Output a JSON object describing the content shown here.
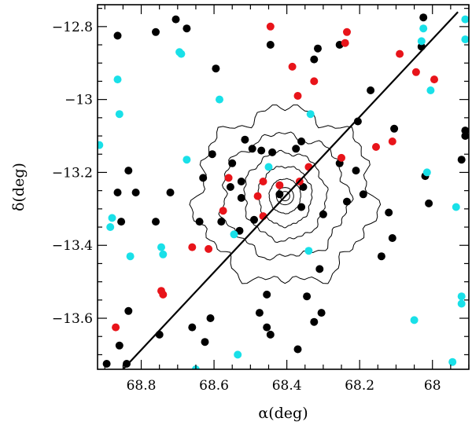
{
  "chart_data": {
    "type": "scatter",
    "xlabel": "α(deg)",
    "ylabel": "δ(deg)",
    "xlim": [
      68.92,
      67.9
    ],
    "ylim": [
      -13.74,
      -12.74
    ],
    "x_axis_reversed": true,
    "x_ticks": [
      68.8,
      68.6,
      68.4,
      68.2,
      68
    ],
    "x_tick_labels": [
      "68.8",
      "68.6",
      "68.4",
      "68.2",
      "68"
    ],
    "y_ticks": [
      -12.8,
      -13.0,
      -13.2,
      -13.4,
      -13.6
    ],
    "y_tick_labels": [
      "−12.8",
      "−13",
      "−13.2",
      "−13.4",
      "−13.6"
    ],
    "grid": false,
    "line": {
      "x": [
        68.85,
        67.93
      ],
      "y": [
        -13.74,
        -12.76
      ],
      "color": "#000000"
    },
    "center": {
      "x": 68.405,
      "y": -13.265
    },
    "colors": {
      "black": "#000000",
      "red": "#e8141a",
      "cyan": "#19e0e8"
    },
    "series": [
      {
        "color": "#000000",
        "points": [
          [
            68.865,
            -12.825
          ],
          [
            68.76,
            -12.815
          ],
          [
            68.705,
            -12.78
          ],
          [
            68.675,
            -12.805
          ],
          [
            68.595,
            -12.915
          ],
          [
            68.445,
            -12.85
          ],
          [
            68.325,
            -12.89
          ],
          [
            68.315,
            -12.86
          ],
          [
            68.255,
            -12.85
          ],
          [
            68.17,
            -12.975
          ],
          [
            68.105,
            -13.08
          ],
          [
            68.03,
            -12.855
          ],
          [
            68.025,
            -12.775
          ],
          [
            68.205,
            -13.06
          ],
          [
            67.91,
            -13.085
          ],
          [
            67.91,
            -13.1
          ],
          [
            67.92,
            -13.165
          ],
          [
            68.02,
            -13.21
          ],
          [
            68.01,
            -13.285
          ],
          [
            68.12,
            -13.31
          ],
          [
            68.11,
            -13.38
          ],
          [
            68.14,
            -13.43
          ],
          [
            68.31,
            -13.465
          ],
          [
            68.345,
            -13.54
          ],
          [
            68.305,
            -13.585
          ],
          [
            68.325,
            -13.61
          ],
          [
            68.37,
            -13.685
          ],
          [
            68.445,
            -13.645
          ],
          [
            68.455,
            -13.625
          ],
          [
            68.475,
            -13.585
          ],
          [
            68.455,
            -13.535
          ],
          [
            68.61,
            -13.6
          ],
          [
            68.66,
            -13.625
          ],
          [
            68.625,
            -13.665
          ],
          [
            68.75,
            -13.645
          ],
          [
            68.86,
            -13.675
          ],
          [
            68.84,
            -13.725
          ],
          [
            68.865,
            -13.255
          ],
          [
            68.815,
            -13.255
          ],
          [
            68.76,
            -13.335
          ],
          [
            68.855,
            -13.335
          ],
          [
            68.72,
            -13.255
          ],
          [
            68.835,
            -13.195
          ],
          [
            68.63,
            -13.215
          ],
          [
            68.58,
            -13.335
          ],
          [
            68.64,
            -13.335
          ],
          [
            68.605,
            -13.15
          ],
          [
            68.555,
            -13.24
          ],
          [
            68.55,
            -13.175
          ],
          [
            68.515,
            -13.11
          ],
          [
            68.495,
            -13.135
          ],
          [
            68.47,
            -13.14
          ],
          [
            68.44,
            -13.145
          ],
          [
            68.375,
            -13.135
          ],
          [
            68.36,
            -13.115
          ],
          [
            68.525,
            -13.27
          ],
          [
            68.49,
            -13.33
          ],
          [
            68.53,
            -13.36
          ],
          [
            68.42,
            -13.26
          ],
          [
            68.36,
            -13.295
          ],
          [
            68.355,
            -13.24
          ],
          [
            68.255,
            -13.175
          ],
          [
            68.235,
            -13.28
          ],
          [
            68.3,
            -13.315
          ],
          [
            68.525,
            -13.225
          ],
          [
            68.21,
            -13.195
          ],
          [
            68.19,
            -13.26
          ],
          [
            68.835,
            -13.58
          ],
          [
            68.895,
            -13.725
          ]
        ]
      },
      {
        "color": "#e8141a",
        "points": [
          [
            68.445,
            -12.8
          ],
          [
            68.235,
            -12.815
          ],
          [
            68.385,
            -12.91
          ],
          [
            68.09,
            -12.875
          ],
          [
            68.24,
            -12.845
          ],
          [
            68.37,
            -12.99
          ],
          [
            68.325,
            -12.95
          ],
          [
            68.045,
            -12.925
          ],
          [
            67.995,
            -12.945
          ],
          [
            68.11,
            -13.115
          ],
          [
            68.25,
            -13.16
          ],
          [
            68.155,
            -13.13
          ],
          [
            68.34,
            -13.185
          ],
          [
            68.42,
            -13.235
          ],
          [
            68.465,
            -13.225
          ],
          [
            68.48,
            -13.265
          ],
          [
            68.365,
            -13.225
          ],
          [
            68.56,
            -13.215
          ],
          [
            68.575,
            -13.305
          ],
          [
            68.465,
            -13.32
          ],
          [
            68.66,
            -13.405
          ],
          [
            68.615,
            -13.41
          ],
          [
            68.74,
            -13.535
          ],
          [
            68.745,
            -13.525
          ],
          [
            68.87,
            -13.625
          ]
        ]
      },
      {
        "color": "#19e0e8",
        "points": [
          [
            68.865,
            -12.945
          ],
          [
            68.695,
            -12.87
          ],
          [
            68.69,
            -12.875
          ],
          [
            68.585,
            -13.0
          ],
          [
            68.86,
            -13.04
          ],
          [
            68.335,
            -13.04
          ],
          [
            68.025,
            -12.805
          ],
          [
            68.03,
            -12.84
          ],
          [
            67.91,
            -12.835
          ],
          [
            67.91,
            -12.78
          ],
          [
            68.005,
            -12.975
          ],
          [
            68.015,
            -13.2
          ],
          [
            67.935,
            -13.295
          ],
          [
            67.92,
            -13.54
          ],
          [
            67.92,
            -13.56
          ],
          [
            67.945,
            -13.72
          ],
          [
            68.05,
            -13.605
          ],
          [
            68.34,
            -13.415
          ],
          [
            68.545,
            -13.37
          ],
          [
            68.45,
            -13.185
          ],
          [
            68.675,
            -13.165
          ],
          [
            68.74,
            -13.425
          ],
          [
            68.745,
            -13.405
          ],
          [
            68.83,
            -13.43
          ],
          [
            68.88,
            -13.325
          ],
          [
            68.885,
            -13.35
          ],
          [
            68.915,
            -13.125
          ],
          [
            68.65,
            -13.74
          ],
          [
            68.535,
            -13.7
          ]
        ]
      }
    ]
  }
}
